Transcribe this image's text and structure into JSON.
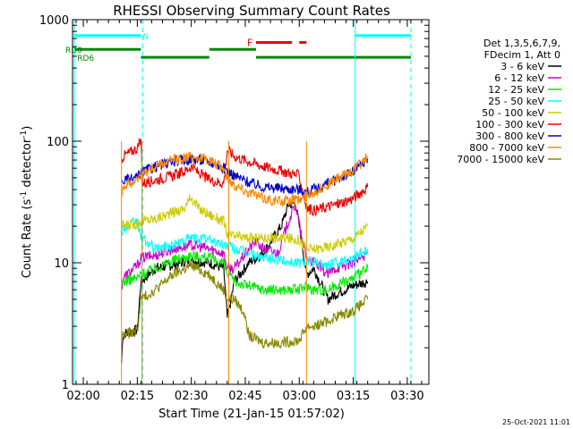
{
  "chart_data": {
    "type": "line",
    "title": "RHESSI Observing Summary Count Rates",
    "xlabel": "Start Time (21-Jan-15 01:57:02)",
    "ylabel_main": "Count Rate (s",
    "ylabel_sup1": "-1",
    "ylabel_mid": " detector",
    "ylabel_sup2": "-1",
    "ylabel_end": ")",
    "yscale": "log",
    "ylim": [
      1,
      1000
    ],
    "xlim_minutes": [
      117,
      216
    ],
    "x_ticks": [
      {
        "m": 120,
        "label": "02:00"
      },
      {
        "m": 135,
        "label": "02:15"
      },
      {
        "m": 150,
        "label": "02:30"
      },
      {
        "m": 165,
        "label": "02:45"
      },
      {
        "m": 180,
        "label": "03:00"
      },
      {
        "m": 195,
        "label": "03:15"
      },
      {
        "m": 210,
        "label": "03:30"
      }
    ],
    "y_ticks": [
      {
        "v": 1,
        "label": "1"
      },
      {
        "v": 10,
        "label": "10"
      },
      {
        "v": 100,
        "label": "100"
      },
      {
        "v": 1000,
        "label": "1000"
      }
    ],
    "legend_header": [
      "Det 1,3,5,6,7,9,",
      "FDecim 1, Att 0"
    ],
    "series": [
      {
        "name": "3 - 6 keV",
        "color": "#000000",
        "points": [
          [
            130.6,
            1.5
          ],
          [
            131,
            2.6
          ],
          [
            135,
            2.8
          ],
          [
            136,
            7
          ],
          [
            140,
            9
          ],
          [
            145,
            9.6
          ],
          [
            150,
            10.5
          ],
          [
            155,
            10
          ],
          [
            159,
            9
          ],
          [
            160,
            3.5
          ],
          [
            162,
            7
          ],
          [
            166,
            10
          ],
          [
            170,
            12
          ],
          [
            175,
            20
          ],
          [
            177,
            30
          ],
          [
            179,
            31
          ],
          [
            181,
            13
          ],
          [
            182,
            8
          ],
          [
            184,
            9
          ],
          [
            188,
            5
          ],
          [
            190,
            5.5
          ],
          [
            195,
            6.5
          ],
          [
            199,
            7
          ]
        ]
      },
      {
        "name": "6 - 12 keV",
        "color": "#cc00cc",
        "points": [
          [
            130.6,
            6
          ],
          [
            131,
            7.5
          ],
          [
            135,
            9.5
          ],
          [
            136,
            11
          ],
          [
            140,
            11.5
          ],
          [
            145,
            13
          ],
          [
            150,
            14
          ],
          [
            155,
            13
          ],
          [
            159,
            12
          ],
          [
            160,
            9
          ],
          [
            162,
            9
          ],
          [
            166,
            13
          ],
          [
            168,
            15
          ],
          [
            170,
            13
          ],
          [
            174,
            12
          ],
          [
            177,
            22
          ],
          [
            179,
            30
          ],
          [
            181,
            14
          ],
          [
            182,
            11
          ],
          [
            184,
            10
          ],
          [
            188,
            8
          ],
          [
            190,
            9
          ],
          [
            195,
            10
          ],
          [
            199,
            12
          ]
        ]
      },
      {
        "name": "12 - 25 keV",
        "color": "#00ee00",
        "points": [
          [
            130.6,
            6.5
          ],
          [
            131,
            7
          ],
          [
            135,
            7.5
          ],
          [
            136,
            8
          ],
          [
            140,
            9
          ],
          [
            145,
            10.5
          ],
          [
            150,
            11.5
          ],
          [
            155,
            11
          ],
          [
            159,
            10
          ],
          [
            160,
            8
          ],
          [
            162,
            7
          ],
          [
            166,
            6.5
          ],
          [
            170,
            6
          ],
          [
            175,
            6
          ],
          [
            180,
            6
          ],
          [
            182,
            6.5
          ],
          [
            184,
            6
          ],
          [
            188,
            6
          ],
          [
            190,
            6.5
          ],
          [
            195,
            7.5
          ],
          [
            199,
            9
          ]
        ]
      },
      {
        "name": "25 - 50 keV",
        "color": "#00ffff",
        "points": [
          [
            130.6,
            18
          ],
          [
            131,
            19
          ],
          [
            135,
            22
          ],
          [
            136,
            16
          ],
          [
            140,
            13
          ],
          [
            145,
            14
          ],
          [
            150,
            16
          ],
          [
            155,
            15.5
          ],
          [
            159,
            14
          ],
          [
            160,
            14
          ],
          [
            162,
            13
          ],
          [
            166,
            12
          ],
          [
            170,
            11
          ],
          [
            175,
            10.5
          ],
          [
            180,
            10
          ],
          [
            182,
            10.5
          ],
          [
            184,
            10
          ],
          [
            188,
            9.5
          ],
          [
            190,
            10
          ],
          [
            195,
            11
          ],
          [
            199,
            13
          ]
        ]
      },
      {
        "name": "50 - 100 keV",
        "color": "#cccc00",
        "points": [
          [
            130.6,
            20
          ],
          [
            131,
            20
          ],
          [
            135,
            21
          ],
          [
            136,
            22
          ],
          [
            140,
            23
          ],
          [
            145,
            26
          ],
          [
            148,
            28
          ],
          [
            150,
            35
          ],
          [
            152,
            28
          ],
          [
            155,
            25
          ],
          [
            159,
            22
          ],
          [
            160,
            17
          ],
          [
            162,
            16.5
          ],
          [
            166,
            16
          ],
          [
            170,
            16
          ],
          [
            175,
            16
          ],
          [
            180,
            15.5
          ],
          [
            182,
            13
          ],
          [
            184,
            13
          ],
          [
            188,
            13.5
          ],
          [
            190,
            14
          ],
          [
            195,
            16
          ],
          [
            199,
            20
          ]
        ]
      },
      {
        "name": "100 - 300 keV",
        "color": "#ee0000",
        "points": [
          [
            130.6,
            70
          ],
          [
            131,
            75
          ],
          [
            135,
            88
          ],
          [
            136,
            100
          ],
          [
            136.5,
            45
          ],
          [
            140,
            48
          ],
          [
            145,
            52
          ],
          [
            148,
            56
          ],
          [
            150,
            62
          ],
          [
            152,
            55
          ],
          [
            155,
            48
          ],
          [
            159,
            45
          ],
          [
            160,
            85
          ],
          [
            162,
            75
          ],
          [
            166,
            68
          ],
          [
            170,
            62
          ],
          [
            175,
            57
          ],
          [
            180,
            52
          ],
          [
            182,
            28
          ],
          [
            184,
            27
          ],
          [
            188,
            29
          ],
          [
            190,
            30
          ],
          [
            195,
            34
          ],
          [
            199,
            42
          ]
        ]
      },
      {
        "name": "300 - 800 keV",
        "color": "#0000cc",
        "points": [
          [
            130.6,
            45
          ],
          [
            131,
            47
          ],
          [
            135,
            50
          ],
          [
            136,
            55
          ],
          [
            140,
            62
          ],
          [
            145,
            68
          ],
          [
            150,
            72
          ],
          [
            155,
            68
          ],
          [
            159,
            60
          ],
          [
            160,
            58
          ],
          [
            162,
            52
          ],
          [
            166,
            46
          ],
          [
            170,
            42
          ],
          [
            175,
            41
          ],
          [
            180,
            40
          ],
          [
            182,
            38
          ],
          [
            184,
            40
          ],
          [
            188,
            45
          ],
          [
            190,
            48
          ],
          [
            195,
            56
          ],
          [
            199,
            72
          ]
        ]
      },
      {
        "name": "800 - 7000 keV",
        "color": "#ff8800",
        "points": [
          [
            130.6,
            38
          ],
          [
            131,
            42
          ],
          [
            135,
            48
          ],
          [
            136,
            52
          ],
          [
            140,
            62
          ],
          [
            145,
            70
          ],
          [
            150,
            75
          ],
          [
            155,
            70
          ],
          [
            159,
            60
          ],
          [
            160,
            50
          ],
          [
            162,
            44
          ],
          [
            166,
            38
          ],
          [
            170,
            34
          ],
          [
            175,
            32
          ],
          [
            180,
            33
          ],
          [
            182,
            35
          ],
          [
            184,
            38
          ],
          [
            188,
            44
          ],
          [
            190,
            48
          ],
          [
            195,
            58
          ],
          [
            199,
            75
          ]
        ]
      },
      {
        "name": "7000 - 15000 keV",
        "color": "#888800",
        "points": [
          [
            130.6,
            2.5
          ],
          [
            131,
            2.5
          ],
          [
            135,
            2.8
          ],
          [
            136,
            5
          ],
          [
            140,
            6
          ],
          [
            145,
            8
          ],
          [
            150,
            9.5
          ],
          [
            155,
            8
          ],
          [
            159,
            6
          ],
          [
            160,
            5
          ],
          [
            162,
            5
          ],
          [
            165,
            3.8
          ],
          [
            166,
            2.5
          ],
          [
            170,
            2.2
          ],
          [
            175,
            2.2
          ],
          [
            180,
            2.3
          ],
          [
            182,
            3
          ],
          [
            184,
            3
          ],
          [
            188,
            3.3
          ],
          [
            190,
            3.6
          ],
          [
            195,
            4
          ],
          [
            199,
            5
          ]
        ]
      }
    ],
    "annotations": [
      {
        "text": "N",
        "color": "#00ffff",
        "m": 136.5,
        "v": 740
      },
      {
        "text": "RD0",
        "color": "#008800",
        "m": 115,
        "v": 570
      },
      {
        "text": "RD6",
        "color": "#008800",
        "m": 118.3,
        "v": 490
      },
      {
        "text": "F",
        "color": "#ee0000",
        "m": 165.5,
        "v": 650
      }
    ],
    "state_bars": [
      {
        "color": "#00ffff",
        "v": 740,
        "segments": [
          [
            117.5,
            136
          ],
          [
            195.5,
            211
          ]
        ]
      },
      {
        "color": "#ee0000",
        "v": 650,
        "segments": [
          [
            168,
            178
          ],
          [
            180,
            182
          ]
        ]
      },
      {
        "color": "#008800",
        "v": 570,
        "segments": [
          [
            117.5,
            136
          ],
          [
            155,
            168
          ]
        ]
      },
      {
        "color": "#008800",
        "v": 490,
        "segments": [
          [
            136,
            155
          ],
          [
            168,
            211
          ]
        ]
      }
    ],
    "vlines": [
      {
        "color": "#00ffff",
        "m": 117.5,
        "dashed": false
      },
      {
        "color": "#00ffff",
        "m": 136.5,
        "dashed": true
      },
      {
        "color": "#00ffff",
        "m": 195.5,
        "dashed": false
      },
      {
        "color": "#00ffff",
        "m": 211,
        "dashed": true
      }
    ],
    "attenuator_steps": {
      "color": "#ff8800",
      "x": [
        130.6,
        136.3,
        160.4,
        182
      ]
    },
    "timestamp": "25-Oct-2021 11:01"
  }
}
